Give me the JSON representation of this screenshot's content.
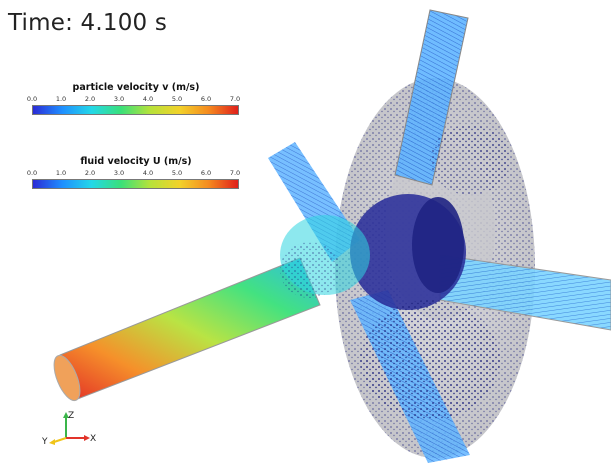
{
  "time_label": "Time: 4.100 s",
  "legend_particle": {
    "title": "particle velocity v (m/s)",
    "ticks": [
      "0.0",
      "1.0",
      "2.0",
      "3.0",
      "4.0",
      "5.0",
      "6.0",
      "7.0"
    ]
  },
  "legend_fluid": {
    "title": "fluid velocity U (m/s)",
    "ticks": [
      "0.0",
      "1.0",
      "2.0",
      "3.0",
      "4.0",
      "5.0",
      "6.0",
      "7.0"
    ]
  },
  "axes": {
    "z": "Z",
    "y": "Y",
    "x": "X"
  },
  "colormap": [
    "#2b2bd6",
    "#1f8fff",
    "#23d8e8",
    "#39e07a",
    "#b6e23a",
    "#f2d22a",
    "#f58a1f",
    "#e0201c"
  ]
}
